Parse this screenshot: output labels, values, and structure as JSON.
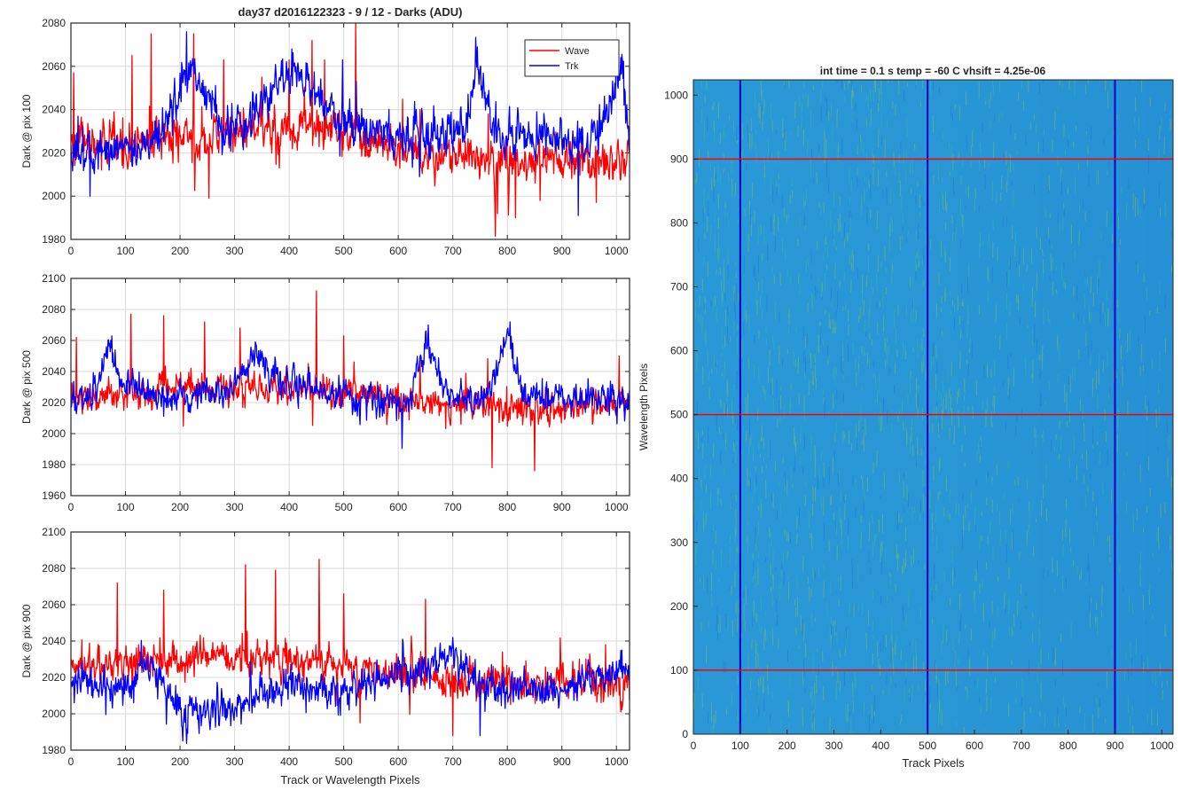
{
  "figure_title": "day37 d2016122323 - 9 / 12 - Darks (ADU)",
  "chart_data": [
    {
      "type": "line",
      "title": "day37 d2016122323 - 9 / 12 - Darks (ADU)",
      "xlabel": "",
      "ylabel": "Dark @ pix 100",
      "xlim": [
        0,
        1024
      ],
      "ylim": [
        1980,
        2080
      ],
      "xticks": [
        "0",
        "100",
        "200",
        "300",
        "400",
        "500",
        "600",
        "700",
        "800",
        "900",
        "1000"
      ],
      "yticks": [
        "1980",
        "2000",
        "2020",
        "2040",
        "2060",
        "2080"
      ],
      "grid": true,
      "legend": {
        "placement": "top-right",
        "entries": [
          "Wave",
          "Trk"
        ]
      },
      "series": [
        {
          "name": "Wave",
          "color": "#ff0000",
          "baseline": [
            [
              0,
              2024
            ],
            [
              200,
              2026
            ],
            [
              400,
              2032
            ],
            [
              500,
              2030
            ],
            [
              600,
              2020
            ],
            [
              800,
              2017
            ],
            [
              1024,
              2017
            ]
          ],
          "spike_points": [
            [
              5,
              2057
            ],
            [
              112,
              2065
            ],
            [
              147,
              2075
            ],
            [
              225,
              2075
            ],
            [
              253,
              1999
            ],
            [
              280,
              2063
            ],
            [
              350,
              2055
            ],
            [
              400,
              2063
            ],
            [
              442,
              2072
            ],
            [
              465,
              2063
            ],
            [
              522,
              2080
            ],
            [
              640,
              2040
            ],
            [
              765,
              2038
            ],
            [
              782,
              1992
            ],
            [
              815,
              1990
            ],
            [
              860,
              1998
            ],
            [
              900,
              2010
            ]
          ]
        },
        {
          "name": "Trk",
          "color": "#0000ff",
          "baseline": [
            [
              0,
              2020
            ],
            [
              60,
              2021
            ],
            [
              140,
              2022
            ],
            [
              180,
              2035
            ],
            [
              212,
              2058
            ],
            [
              240,
              2050
            ],
            [
              280,
              2030
            ],
            [
              340,
              2040
            ],
            [
              380,
              2052
            ],
            [
              420,
              2054
            ],
            [
              450,
              2050
            ],
            [
              490,
              2036
            ],
            [
              540,
              2030
            ],
            [
              620,
              2027
            ],
            [
              700,
              2030
            ],
            [
              725,
              2035
            ],
            [
              745,
              2060
            ],
            [
              770,
              2035
            ],
            [
              800,
              2028
            ],
            [
              880,
              2026
            ],
            [
              960,
              2025
            ],
            [
              1010,
              2058
            ],
            [
              1024,
              2024
            ]
          ],
          "spike_points": [
            [
              35,
              2000
            ],
            [
              212,
              2076
            ],
            [
              405,
              2068
            ],
            [
              498,
              2063
            ],
            [
              745,
              2069
            ],
            [
              1008,
              2064
            ],
            [
              930,
              1991
            ]
          ]
        }
      ]
    },
    {
      "type": "line",
      "title": "",
      "xlabel": "",
      "ylabel": "Dark @ pix 500",
      "xlim": [
        0,
        1024
      ],
      "ylim": [
        1960,
        2100
      ],
      "xticks": [
        "0",
        "100",
        "200",
        "300",
        "400",
        "500",
        "600",
        "700",
        "800",
        "900",
        "1000"
      ],
      "yticks": [
        "1960",
        "1980",
        "2000",
        "2020",
        "2040",
        "2060",
        "2080",
        "2100"
      ],
      "grid": true,
      "series": [
        {
          "name": "Wave",
          "color": "#ff0000",
          "baseline": [
            [
              0,
              2022
            ],
            [
              200,
              2030
            ],
            [
              450,
              2028
            ],
            [
              600,
              2022
            ],
            [
              800,
              2018
            ],
            [
              1024,
              2018
            ]
          ],
          "spike_points": [
            [
              10,
              2062
            ],
            [
              110,
              2077
            ],
            [
              170,
              2076
            ],
            [
              245,
              2072
            ],
            [
              310,
              2068
            ],
            [
              450,
              2092
            ],
            [
              500,
              2063
            ],
            [
              772,
              1978
            ],
            [
              850,
              1976
            ],
            [
              640,
              2048
            ],
            [
              1005,
              2050
            ]
          ]
        },
        {
          "name": "Trk",
          "color": "#0000ff",
          "baseline": [
            [
              0,
              2020
            ],
            [
              40,
              2025
            ],
            [
              70,
              2055
            ],
            [
              100,
              2030
            ],
            [
              150,
              2025
            ],
            [
              280,
              2025
            ],
            [
              345,
              2050
            ],
            [
              380,
              2032
            ],
            [
              440,
              2030
            ],
            [
              520,
              2022
            ],
            [
              620,
              2020
            ],
            [
              650,
              2060
            ],
            [
              690,
              2025
            ],
            [
              760,
              2022
            ],
            [
              800,
              2064
            ],
            [
              830,
              2025
            ],
            [
              1024,
              2020
            ]
          ],
          "spike_points": [
            [
              75,
              2063
            ],
            [
              655,
              2070
            ],
            [
              805,
              2072
            ],
            [
              350,
              2053
            ]
          ]
        }
      ]
    },
    {
      "type": "line",
      "title": "",
      "xlabel": "Track or Wavelength Pixels",
      "ylabel": "Dark @ pix 900",
      "xlim": [
        0,
        1024
      ],
      "ylim": [
        1980,
        2100
      ],
      "xticks": [
        "0",
        "100",
        "200",
        "300",
        "400",
        "500",
        "600",
        "700",
        "800",
        "900",
        "1000"
      ],
      "yticks": [
        "1980",
        "2000",
        "2020",
        "2040",
        "2060",
        "2080",
        "2100"
      ],
      "grid": true,
      "series": [
        {
          "name": "Wave",
          "color": "#ff0000",
          "baseline": [
            [
              0,
              2025
            ],
            [
              150,
              2030
            ],
            [
              300,
              2032
            ],
            [
              450,
              2030
            ],
            [
              550,
              2024
            ],
            [
              700,
              2018
            ],
            [
              850,
              2016
            ],
            [
              1024,
              2016
            ]
          ],
          "spike_points": [
            [
              85,
              2072
            ],
            [
              170,
              2068
            ],
            [
              320,
              2082
            ],
            [
              375,
              2079
            ],
            [
              455,
              2085
            ],
            [
              500,
              2066
            ],
            [
              650,
              2063
            ],
            [
              700,
              1988
            ],
            [
              530,
              1995
            ],
            [
              980,
              2038
            ]
          ]
        },
        {
          "name": "Trk",
          "color": "#0000ff",
          "baseline": [
            [
              0,
              2018
            ],
            [
              100,
              2014
            ],
            [
              130,
              2025
            ],
            [
              160,
              2022
            ],
            [
              200,
              2000
            ],
            [
              300,
              2005
            ],
            [
              400,
              2016
            ],
            [
              480,
              2012
            ],
            [
              520,
              2015
            ],
            [
              600,
              2022
            ],
            [
              700,
              2030
            ],
            [
              740,
              2018
            ],
            [
              800,
              2012
            ],
            [
              900,
              2014
            ],
            [
              1024,
              2025
            ]
          ],
          "spike_points": [
            [
              205,
              1985
            ],
            [
              700,
              2042
            ],
            [
              750,
              1988
            ],
            [
              1010,
              2035
            ]
          ]
        }
      ]
    },
    {
      "type": "heatmap",
      "title": "int time = 0.1 s   temp = -60 C   vhsift = 4.25e-06",
      "xlabel": "Track Pixels",
      "ylabel": "Wavelength Pixels",
      "xlim": [
        0,
        1024
      ],
      "ylim": [
        0,
        1024
      ],
      "xticks": [
        "0",
        "100",
        "200",
        "300",
        "400",
        "500",
        "600",
        "700",
        "800",
        "900",
        "1000"
      ],
      "yticks": [
        "0",
        "100",
        "200",
        "300",
        "400",
        "500",
        "600",
        "700",
        "800",
        "900",
        "1000"
      ],
      "colormap": "parula",
      "base_color": "#2a98d6",
      "streak_color": "#86c85a",
      "vertical_lines": {
        "color": "#0000cc",
        "x": [
          100,
          500,
          900
        ]
      },
      "horizontal_lines": {
        "color": "#ff0000",
        "y": [
          100,
          500,
          900
        ]
      }
    }
  ]
}
